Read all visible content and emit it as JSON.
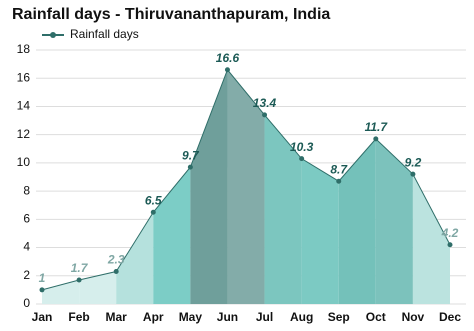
{
  "chart_data": {
    "type": "area",
    "title": "Rainfall days - Thiruvananthapuram, India",
    "categories": [
      "Jan",
      "Feb",
      "Mar",
      "Apr",
      "May",
      "Jun",
      "Jul",
      "Aug",
      "Sep",
      "Oct",
      "Nov",
      "Dec"
    ],
    "series": [
      {
        "name": "Rainfall days",
        "color": "#2f6e69",
        "values": [
          1,
          1.7,
          2.3,
          6.5,
          9.7,
          16.6,
          13.4,
          10.3,
          8.7,
          11.7,
          9.2,
          4.2
        ]
      }
    ],
    "segment_colors": [
      "#d6eeec",
      "#d6eeec",
      "#b5e1dd",
      "#7ccdc6",
      "#6f9f9b",
      "#83aca9",
      "#7cc6bf",
      "#7ccac3",
      "#74c1ba",
      "#7cc2bc",
      "#bbe3df"
    ],
    "ylim": [
      0,
      18
    ],
    "yticks": [
      0,
      2,
      4,
      6,
      8,
      10,
      12,
      14,
      16,
      18
    ],
    "grid": true,
    "legend": "top-left"
  }
}
